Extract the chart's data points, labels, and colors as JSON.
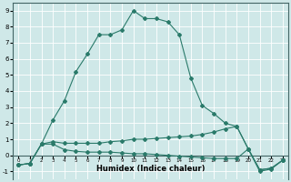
{
  "xlabel": "Humidex (Indice chaleur)",
  "xlim": [
    -0.5,
    23.5
  ],
  "ylim": [
    -1.5,
    9.5
  ],
  "xticks": [
    0,
    1,
    2,
    3,
    4,
    5,
    6,
    7,
    8,
    9,
    10,
    11,
    12,
    13,
    14,
    15,
    16,
    17,
    18,
    19,
    20,
    21,
    22,
    23
  ],
  "yticks": [
    -1,
    0,
    1,
    2,
    3,
    4,
    5,
    6,
    7,
    8,
    9
  ],
  "bg_color": "#cfe8e8",
  "line_color": "#2a7a6a",
  "grid_color": "#ffffff",
  "line1_y": [
    -0.6,
    -0.5,
    0.7,
    2.2,
    3.4,
    5.2,
    6.3,
    7.5,
    7.5,
    7.8,
    9.0,
    8.5,
    8.5,
    8.3,
    7.5,
    4.8,
    3.1,
    2.6,
    2.0,
    1.8,
    0.4,
    -0.9,
    -0.8,
    -0.3
  ],
  "line2_y": [
    -0.6,
    -0.5,
    0.7,
    0.85,
    0.75,
    0.75,
    0.75,
    0.75,
    0.85,
    0.9,
    1.0,
    1.0,
    1.05,
    1.1,
    1.15,
    1.2,
    1.3,
    1.45,
    1.65,
    1.8,
    0.4,
    -0.9,
    -0.8,
    -0.3
  ],
  "line3_y": [
    -0.6,
    -0.5,
    0.7,
    0.7,
    0.35,
    0.25,
    0.2,
    0.2,
    0.2,
    0.15,
    0.1,
    0.1,
    0.05,
    0.0,
    -0.05,
    -0.1,
    -0.15,
    -0.2,
    -0.2,
    -0.2,
    0.4,
    -1.0,
    -0.85,
    -0.3
  ]
}
